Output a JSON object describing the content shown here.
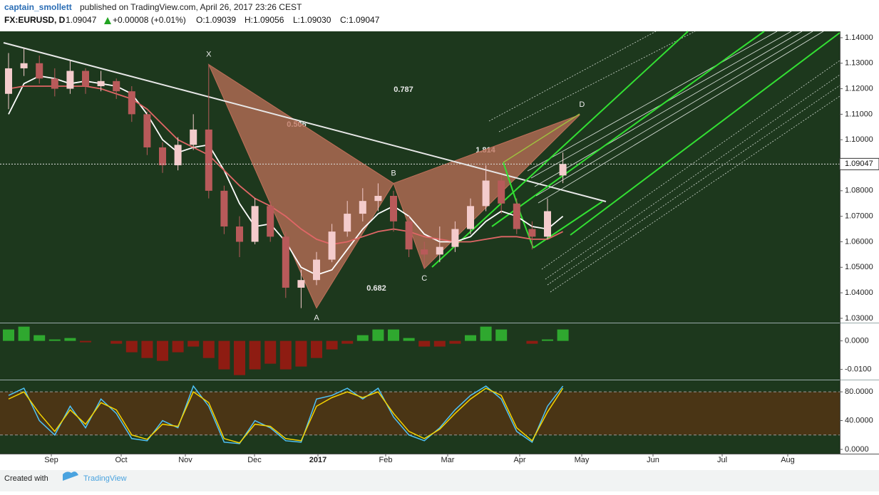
{
  "header": {
    "author": "captain_smollett",
    "published": "published on TradingView.com, April 26, 2017 23:26 CEST",
    "symbol": "FX:EURUSD, D",
    "last": "1.09047",
    "change": "+0.00008 (+0.01%)",
    "ohlc": [
      "O:1.09039",
      "H:1.09056",
      "L:1.09030",
      "C:1.09047"
    ]
  },
  "chart_data": [
    {
      "type": "candlestick",
      "x_labels": [
        "Sep",
        "Oct",
        "Nov",
        "Dec",
        "2017",
        "Feb",
        "Mar",
        "Apr",
        "May",
        "Jun",
        "Jul",
        "Aug"
      ],
      "open": [
        1.118,
        1.128,
        1.13,
        1.124,
        1.12,
        1.127,
        1.121,
        1.123,
        1.119,
        1.11,
        1.097,
        1.09,
        1.098,
        1.104,
        1.08,
        1.066,
        1.06,
        1.074,
        1.062,
        1.042,
        1.045,
        1.053,
        1.064,
        1.071,
        1.076,
        1.078,
        1.068,
        1.057,
        1.055,
        1.058,
        1.065,
        1.074,
        1.084,
        1.075,
        1.065,
        1.062,
        1.086
      ],
      "high": [
        1.134,
        1.136,
        1.133,
        1.128,
        1.131,
        1.128,
        1.127,
        1.124,
        1.121,
        1.111,
        1.099,
        1.101,
        1.11,
        1.1295,
        1.082,
        1.07,
        1.077,
        1.076,
        1.064,
        1.049,
        1.056,
        1.067,
        1.076,
        1.081,
        1.0829,
        1.08,
        1.07,
        1.06,
        1.066,
        1.068,
        1.077,
        1.09,
        1.086,
        1.077,
        1.068,
        1.077,
        1.095
      ],
      "low": [
        1.112,
        1.125,
        1.122,
        1.117,
        1.118,
        1.118,
        1.119,
        1.116,
        1.107,
        1.094,
        1.087,
        1.088,
        1.096,
        1.077,
        1.063,
        1.054,
        1.059,
        1.06,
        1.038,
        1.034,
        1.043,
        1.052,
        1.062,
        1.068,
        1.072,
        1.064,
        1.054,
        1.0495,
        1.052,
        1.056,
        1.063,
        1.072,
        1.071,
        1.063,
        1.057,
        1.061,
        1.083
      ],
      "close": [
        1.128,
        1.13,
        1.124,
        1.12,
        1.127,
        1.121,
        1.123,
        1.119,
        1.11,
        1.097,
        1.09,
        1.098,
        1.104,
        1.08,
        1.066,
        1.06,
        1.074,
        1.062,
        1.042,
        1.045,
        1.053,
        1.064,
        1.071,
        1.076,
        1.078,
        1.068,
        1.057,
        1.055,
        1.058,
        1.065,
        1.074,
        1.084,
        1.075,
        1.065,
        1.062,
        1.072,
        1.0905
      ],
      "up_color": "#f4cccc",
      "down_color": "#b85a5a",
      "series": [
        {
          "color": "#ffffff",
          "values": [
            1.11,
            1.122,
            1.125,
            1.124,
            1.122,
            1.123,
            1.122,
            1.121,
            1.118,
            1.11,
            1.1,
            1.095,
            1.097,
            1.098,
            1.088,
            1.075,
            1.066,
            1.067,
            1.06,
            1.05,
            1.047,
            1.049,
            1.057,
            1.065,
            1.071,
            1.074,
            1.07,
            1.063,
            1.06,
            1.06,
            1.062,
            1.068,
            1.072,
            1.07,
            1.066,
            1.065,
            1.07
          ]
        },
        {
          "color": "#e06666",
          "values": [
            1.12,
            1.121,
            1.121,
            1.121,
            1.121,
            1.121,
            1.12,
            1.118,
            1.116,
            1.112,
            1.106,
            1.1,
            1.097,
            1.094,
            1.088,
            1.082,
            1.077,
            1.074,
            1.07,
            1.065,
            1.061,
            1.059,
            1.06,
            1.062,
            1.064,
            1.065,
            1.064,
            1.062,
            1.061,
            1.06,
            1.06,
            1.061,
            1.062,
            1.062,
            1.061,
            1.061,
            1.064
          ]
        }
      ],
      "pattern": {
        "color": "#c0705a",
        "points": [
          {
            "label": "X",
            "value": 1.1295
          },
          {
            "label": "A",
            "value": 1.034
          },
          {
            "label": "B",
            "value": 1.0829
          },
          {
            "label": "C",
            "value": 1.0495
          },
          {
            "label": "D",
            "value": 1.1098
          }
        ],
        "ratios": [
          0.787,
          0.506,
          1.814,
          0.682
        ]
      },
      "last_price": 1.09047,
      "ylim": [
        1.0283,
        1.1425
      ],
      "yticks": [
        {
          "value": 1.03,
          "label": "1.03000"
        },
        {
          "value": 1.04,
          "label": "1.04000"
        },
        {
          "value": 1.05,
          "label": "1.05000"
        },
        {
          "value": 1.06,
          "label": "1.06000"
        },
        {
          "value": 1.07,
          "label": "1.07000"
        },
        {
          "value": 1.08,
          "label": "1.08000"
        },
        {
          "value": 1.09,
          "label": "1.09000"
        },
        {
          "value": 1.1,
          "label": "1.10000"
        },
        {
          "value": 1.11,
          "label": "1.11000"
        },
        {
          "value": 1.12,
          "label": "1.12000"
        },
        {
          "value": 1.13,
          "label": "1.13000"
        },
        {
          "value": 1.14,
          "label": "1.14000"
        }
      ],
      "grid": false
    },
    {
      "type": "bar",
      "values": [
        0.004,
        0.005,
        0.002,
        0.0005,
        0.001,
        -0.0005,
        0,
        -0.001,
        -0.004,
        -0.006,
        -0.007,
        -0.004,
        -0.002,
        -0.006,
        -0.01,
        -0.012,
        -0.01,
        -0.008,
        -0.01,
        -0.009,
        -0.006,
        -0.003,
        -0.001,
        0.002,
        0.004,
        0.004,
        0.001,
        -0.002,
        -0.002,
        -0.001,
        0.002,
        0.005,
        0.004,
        0,
        -0.001,
        0.0005,
        0.004
      ],
      "pos_color": "#2fa82f",
      "neg_color": "#8e1c12",
      "ylim": [
        -0.01359,
        0.00615
      ],
      "yticks": [
        {
          "value": 0,
          "label": "0.0000"
        },
        {
          "value": -0.01,
          "label": "-0.0100"
        }
      ]
    },
    {
      "type": "line",
      "band": [
        20,
        80
      ],
      "band_color": "#4a3515",
      "series": [
        {
          "color": "#4fc3f7",
          "values": [
            75,
            85,
            40,
            20,
            60,
            30,
            70,
            50,
            15,
            12,
            40,
            30,
            88,
            60,
            10,
            8,
            40,
            30,
            12,
            10,
            70,
            75,
            85,
            70,
            85,
            45,
            20,
            12,
            30,
            55,
            75,
            88,
            70,
            25,
            10,
            60,
            88
          ]
        },
        {
          "color": "#f5d300",
          "values": [
            70,
            80,
            50,
            25,
            55,
            35,
            65,
            55,
            20,
            14,
            35,
            32,
            80,
            65,
            15,
            9,
            35,
            32,
            15,
            12,
            60,
            72,
            80,
            72,
            80,
            50,
            25,
            15,
            28,
            50,
            70,
            85,
            75,
            30,
            12,
            52,
            85
          ]
        }
      ],
      "ylim": [
        -6,
        96
      ],
      "yticks": [
        {
          "value": 80,
          "label": "80.0000"
        },
        {
          "value": 40,
          "label": "40.0000"
        },
        {
          "value": 0,
          "label": "0.0000"
        }
      ]
    }
  ],
  "footer": {
    "created_with": "Created with",
    "brand": "TradingView"
  }
}
